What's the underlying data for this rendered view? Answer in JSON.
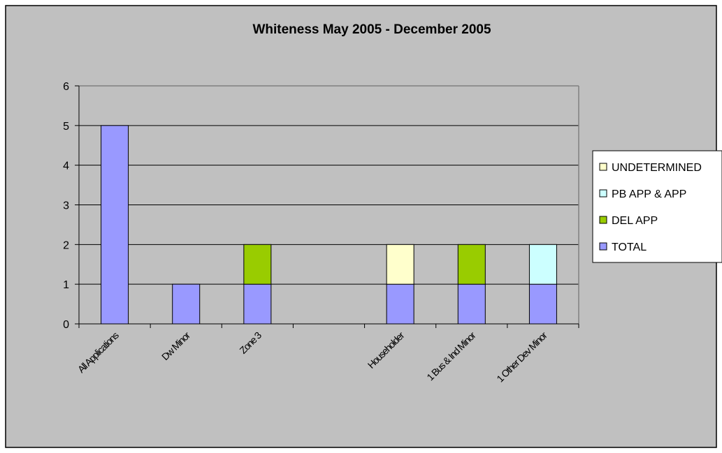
{
  "chart_data": {
    "type": "bar",
    "stacked": true,
    "title": "Whiteness May 2005 - December 2005",
    "xlabel": "",
    "ylabel": "",
    "ylim": [
      0,
      6
    ],
    "yticks": [
      "0",
      "1",
      "2",
      "3",
      "4",
      "5",
      "6"
    ],
    "grid": true,
    "legend_position": "right",
    "categories": [
      "All Applications",
      "Dw Minor",
      "Zone 3",
      "",
      "Householder",
      "1 Bus & Ind Minor",
      "1 Other Dev Minor"
    ],
    "series": [
      {
        "name": "TOTAL",
        "color": "#9999ff",
        "values": [
          5,
          1,
          1,
          0,
          1,
          1,
          1
        ]
      },
      {
        "name": "DEL APP",
        "color": "#99cc00",
        "values": [
          0,
          0,
          1,
          0,
          0,
          1,
          0
        ]
      },
      {
        "name": "PB APP & APP",
        "color": "#ccffff",
        "values": [
          0,
          0,
          0,
          0,
          0,
          0,
          1
        ]
      },
      {
        "name": "UNDETERMINED",
        "color": "#ffffcc",
        "values": [
          0,
          0,
          0,
          0,
          1,
          0,
          0
        ]
      }
    ],
    "legend_order": [
      "UNDETERMINED",
      "PB APP & APP",
      "DEL APP",
      "TOTAL"
    ],
    "background_color": "#c0c0c0"
  }
}
